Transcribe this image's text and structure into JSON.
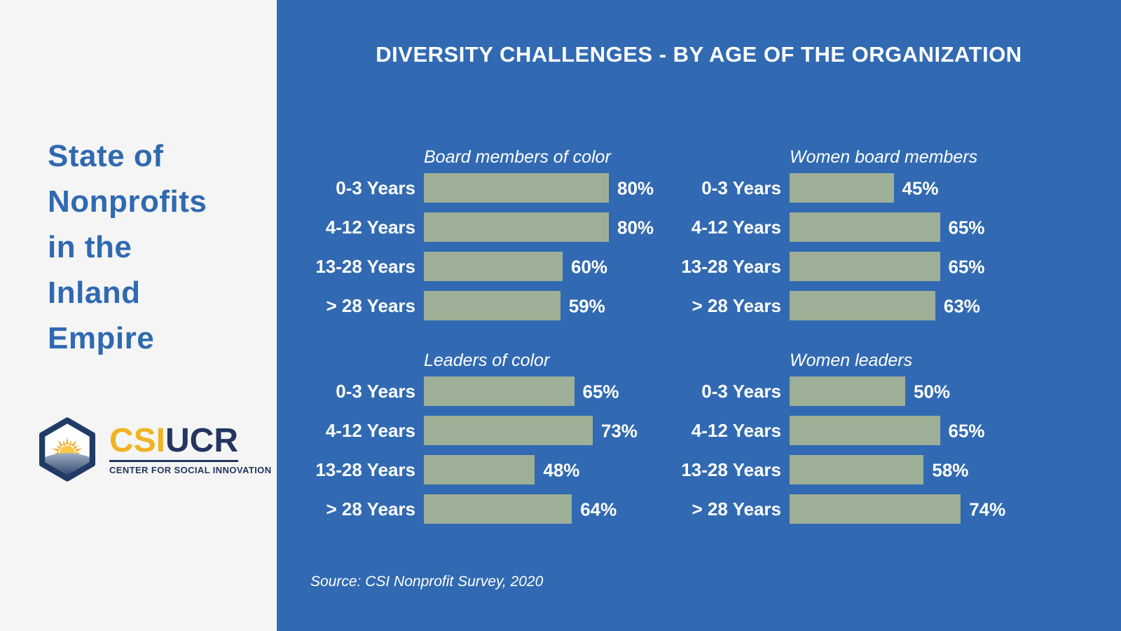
{
  "sidebar": {
    "title": "State of Nonprofits in the Inland Empire",
    "title_lines": [
      "State of",
      "Nonprofits",
      "in the",
      "Inland",
      "Empire"
    ]
  },
  "logo": {
    "csi": "CSI",
    "ucr": "UCR",
    "tagline": "CENTER FOR SOCIAL INNOVATION",
    "icon": "sunrise-hexagon"
  },
  "header": {
    "title": "DIVERSITY CHALLENGES - BY AGE OF THE ORGANIZATION"
  },
  "source": "Source: CSI Nonprofit Survey, 2020",
  "colors": {
    "panel_blue": "#316AB2",
    "sidebar_bg": "#F4F5F4",
    "sidebar_title_blue": "#3069B1",
    "bar_green": "#9EAF98",
    "logo_gold": "#F0B323",
    "logo_navy": "#24355F",
    "text_white": "#FFFFFF"
  },
  "chart_data": [
    {
      "type": "bar",
      "orientation": "horizontal",
      "title": "Board members of color",
      "categories": [
        "0-3 Years",
        "4-12 Years",
        "13-28 Years",
        "> 28 Years"
      ],
      "values": [
        80,
        80,
        60,
        59
      ],
      "unit": "%",
      "xlim": [
        0,
        100
      ],
      "grid": false,
      "value_labels": "outside-end"
    },
    {
      "type": "bar",
      "orientation": "horizontal",
      "title": "Women board members",
      "categories": [
        "0-3 Years",
        "4-12 Years",
        "13-28 Years",
        "> 28 Years"
      ],
      "values": [
        45,
        65,
        65,
        63
      ],
      "unit": "%",
      "xlim": [
        0,
        100
      ],
      "grid": false,
      "value_labels": "outside-end"
    },
    {
      "type": "bar",
      "orientation": "horizontal",
      "title": "Leaders of color",
      "categories": [
        "0-3 Years",
        "4-12 Years",
        "13-28 Years",
        "> 28 Years"
      ],
      "values": [
        65,
        73,
        48,
        64
      ],
      "unit": "%",
      "xlim": [
        0,
        100
      ],
      "grid": false,
      "value_labels": "outside-end"
    },
    {
      "type": "bar",
      "orientation": "horizontal",
      "title": "Women leaders",
      "categories": [
        "0-3 Years",
        "4-12 Years",
        "13-28 Years",
        "> 28 Years"
      ],
      "values": [
        50,
        65,
        58,
        74
      ],
      "unit": "%",
      "xlim": [
        0,
        100
      ],
      "grid": false,
      "value_labels": "outside-end"
    }
  ]
}
